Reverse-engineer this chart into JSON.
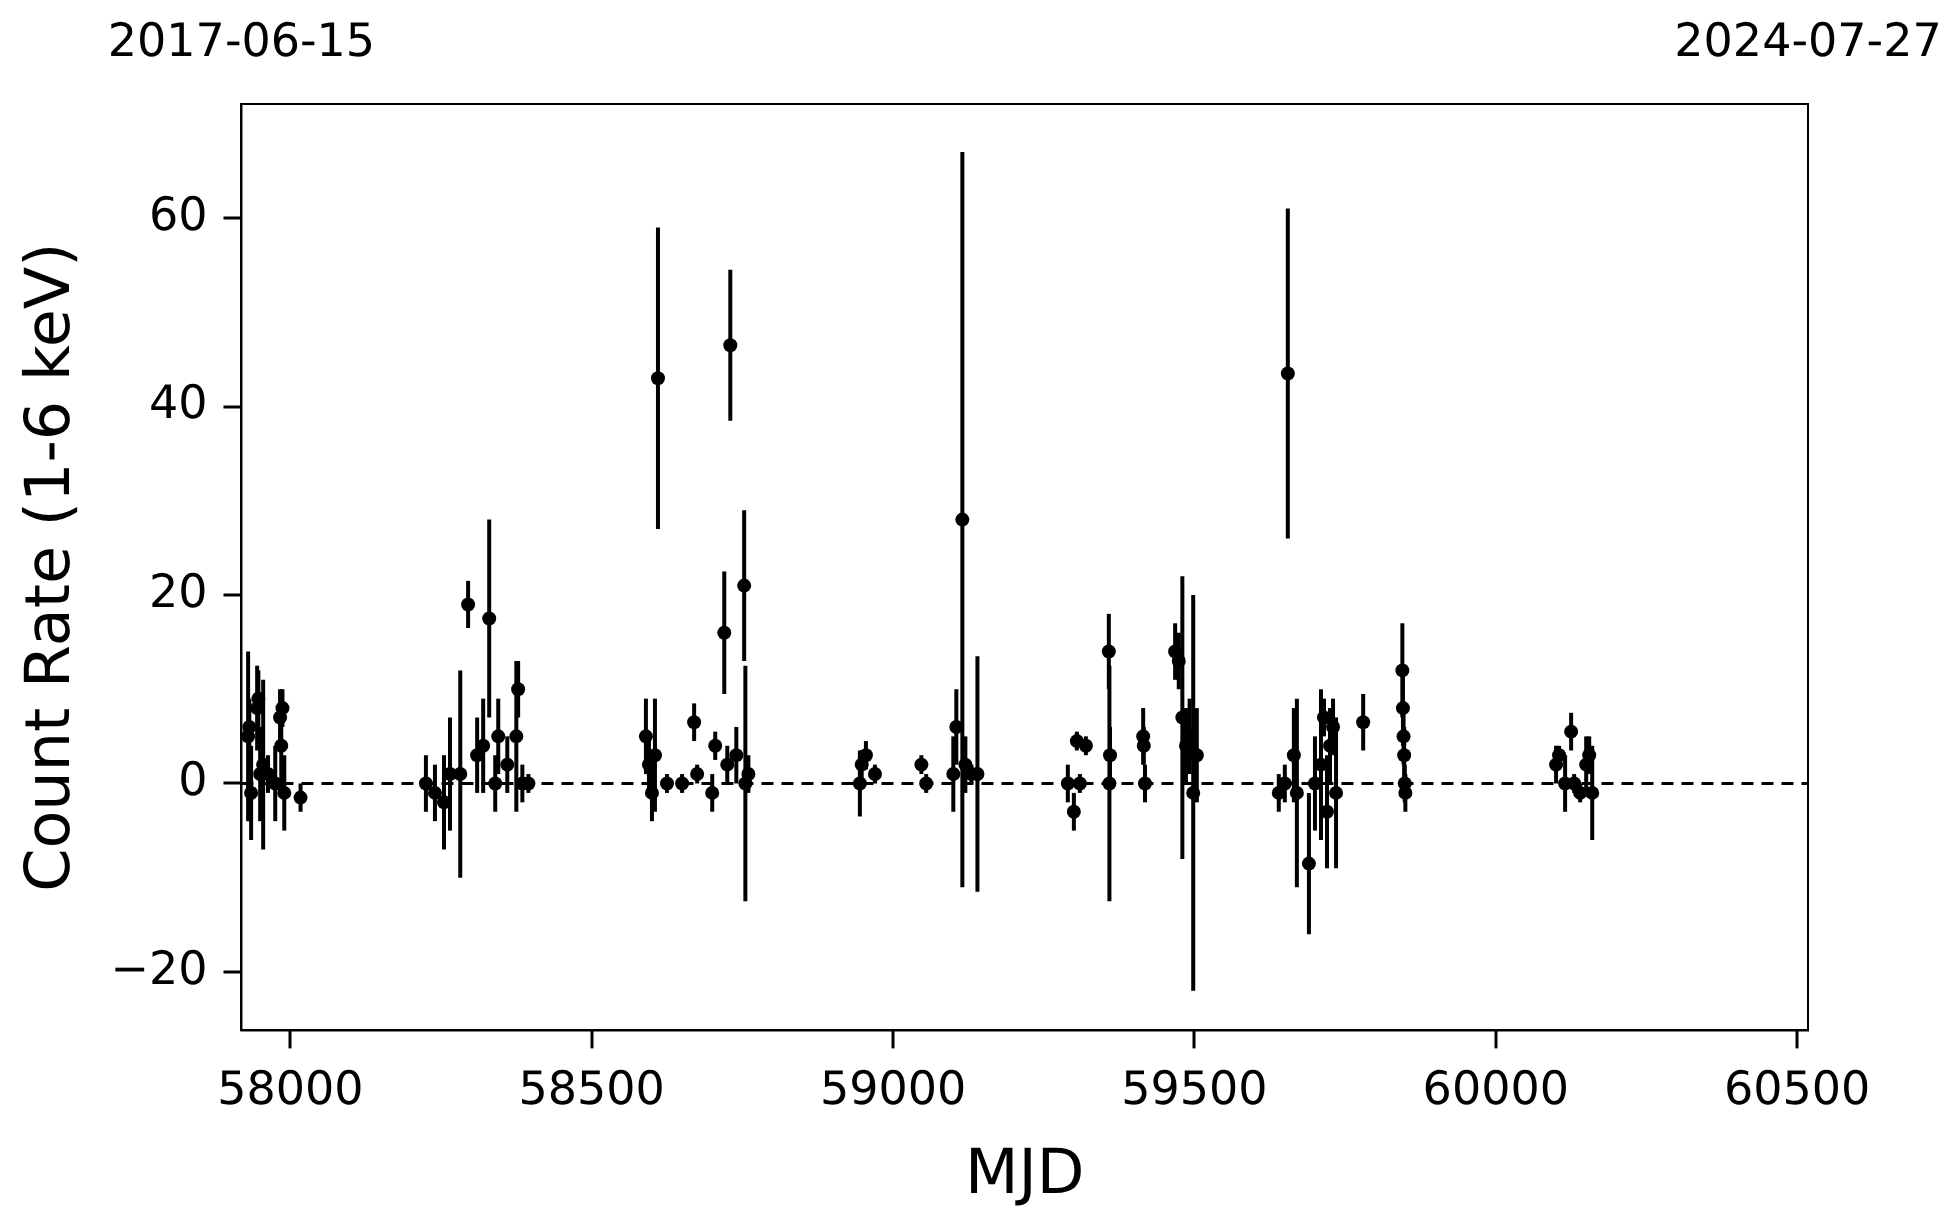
{
  "chart_data": {
    "type": "scatter",
    "xlabel": "MJD",
    "ylabel": "Count Rate (1-6 keV)",
    "xlim": [
      57919,
      60518
    ],
    "xticks": [
      58000,
      58500,
      59000,
      59500,
      60000,
      60500
    ],
    "annotations": [
      "2017-06-15",
      "2024-07-27"
    ],
    "ylim": [
      -26.2,
      72.1
    ],
    "yticks": [
      -20,
      0,
      20,
      40,
      60
    ],
    "grid": false,
    "legend": false,
    "marker": "circle",
    "ref_lines": [
      {
        "axis": "y",
        "value": 0,
        "color": "#000000",
        "line_style": "dashed"
      }
    ],
    "series": [
      {
        "color": "#000000",
        "x": [
          57930,
          57932,
          57935,
          57945,
          57947,
          57950,
          57955,
          57963,
          57975,
          57983,
          57985,
          57987,
          57990,
          58017,
          58225,
          58240,
          58255,
          58265,
          58282,
          58295,
          58310,
          58320,
          58330,
          58340,
          58345,
          58360,
          58375,
          58378,
          58385,
          58395,
          58590,
          58595,
          58600,
          58605,
          58610,
          58625,
          58650,
          58670,
          58675,
          58700,
          58705,
          58720,
          58725,
          58730,
          58740,
          58753,
          58755,
          58760,
          58945,
          58948,
          58955,
          58970,
          59047,
          59055,
          59100,
          59105,
          59115,
          59120,
          59130,
          59140,
          59290,
          59300,
          59305,
          59310,
          59320,
          59358,
          59359,
          59360,
          59415,
          59416,
          59418,
          59468,
          59474,
          59480,
          59486,
          59492,
          59498,
          59504,
          59640,
          59650,
          59655,
          59665,
          59670,
          59690,
          59700,
          59710,
          59715,
          59720,
          59725,
          59730,
          59735,
          59780,
          59845,
          59846,
          59847,
          59848,
          59849,
          59850,
          60100,
          60105,
          60115,
          60125,
          60130,
          60140,
          60150,
          60155,
          60160
        ],
        "values": [
          5,
          6,
          -1,
          8,
          9,
          1,
          2,
          1,
          0,
          7,
          4,
          8,
          -1,
          -1.5,
          0,
          -1,
          -2,
          1,
          1,
          19,
          3,
          4,
          17.5,
          0,
          5,
          2,
          5,
          10,
          0,
          0,
          5,
          2,
          -1,
          3,
          43,
          0,
          0,
          6.5,
          1,
          -1,
          4,
          16,
          2,
          46.5,
          3,
          21,
          0,
          1,
          0,
          2,
          3,
          1,
          2,
          0,
          1,
          6,
          28,
          2,
          1,
          1,
          0,
          -3,
          4.5,
          0,
          4,
          14,
          0,
          3,
          5,
          4,
          0,
          14,
          13,
          7,
          4,
          5,
          -1,
          3,
          -1,
          0,
          43.5,
          3,
          -1,
          -8.5,
          0,
          2,
          7,
          -3,
          4,
          6,
          -1,
          6.5,
          12,
          8,
          5,
          3,
          0,
          -1,
          2,
          3,
          0,
          5.5,
          0,
          -1,
          2,
          3,
          -1
        ],
        "errors": [
          9,
          3,
          5,
          4.5,
          3,
          5,
          9,
          2,
          4,
          3,
          5,
          2,
          4,
          1.5,
          3,
          3,
          5,
          6,
          11,
          2.5,
          4,
          5,
          10.5,
          3,
          4,
          3,
          8,
          3,
          2,
          1,
          4,
          3,
          3,
          6,
          16,
          1,
          1,
          2,
          1,
          2,
          1.5,
          6.5,
          2,
          8,
          3,
          8,
          12.5,
          2,
          3.5,
          1.5,
          1.5,
          1,
          1,
          1,
          4,
          4,
          39,
          3,
          1,
          12.5,
          2,
          2,
          1,
          1,
          1,
          4,
          12.5,
          3,
          3,
          2,
          2,
          3,
          3,
          15,
          4,
          4,
          21,
          5,
          2,
          2,
          17.5,
          5,
          10,
          7.5,
          5,
          8,
          2,
          6,
          4,
          3,
          8,
          3,
          5,
          4,
          3,
          3,
          2,
          2,
          2,
          1,
          3,
          2,
          1,
          1,
          3,
          2,
          5
        ]
      }
    ]
  }
}
